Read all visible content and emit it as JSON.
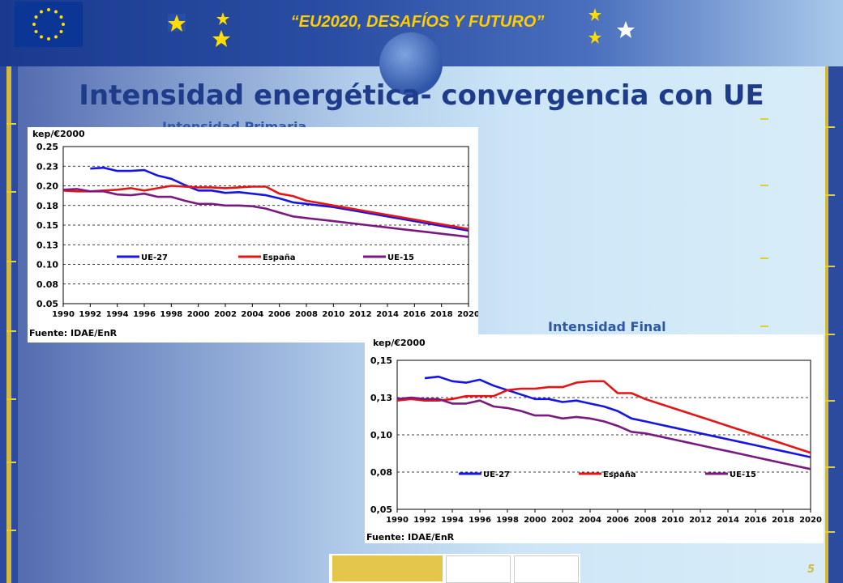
{
  "header": {
    "title": "“EU2020, DESAFÍOS Y FUTURO”"
  },
  "slide": {
    "title": "Intensidad energética- convergencia con UE",
    "page_number": "5"
  },
  "colors": {
    "ue27": "#1515e6",
    "espana": "#e61515",
    "ue15": "#7a1a80"
  },
  "chart_data": [
    {
      "type": "line",
      "title": "Intensidad Primaria",
      "ylabel": "kep/€2000",
      "source": "Fuente: IDAE/EnR",
      "ylim": [
        0.05,
        0.25
      ],
      "yticks": [
        "0.25",
        "0.23",
        "0.20",
        "0.18",
        "0.15",
        "0.13",
        "0.10",
        "0.08",
        "0.05"
      ],
      "xticks": [
        "1990",
        "1992",
        "1994",
        "1996",
        "1998",
        "2000",
        "2002",
        "2004",
        "2006",
        "2008",
        "2010",
        "2012",
        "2014",
        "2016",
        "2018",
        "2020"
      ],
      "x": [
        1990,
        1991,
        1992,
        1993,
        1994,
        1995,
        1996,
        1997,
        1998,
        1999,
        2000,
        2001,
        2002,
        2003,
        2004,
        2005,
        2006,
        2007,
        2008,
        2009,
        2010,
        2011,
        2012,
        2013,
        2014,
        2015,
        2016,
        2017,
        2018,
        2019,
        2020
      ],
      "series": [
        {
          "name": "UE-27",
          "color_key": "ue27",
          "values": [
            null,
            null,
            0.222,
            0.223,
            0.219,
            0.219,
            0.22,
            0.213,
            0.209,
            0.201,
            0.194,
            0.194,
            0.191,
            0.192,
            0.19,
            0.188,
            0.184,
            0.179,
            0.177,
            0.175,
            0.173,
            0.17,
            0.167,
            0.164,
            0.161,
            0.158,
            0.155,
            0.152,
            0.149,
            0.146,
            0.143
          ]
        },
        {
          "name": "España",
          "color_key": "espana",
          "values": [
            0.194,
            0.193,
            0.193,
            0.194,
            0.195,
            0.197,
            0.194,
            0.197,
            0.2,
            0.199,
            0.198,
            0.198,
            0.197,
            0.198,
            0.199,
            0.199,
            0.19,
            0.187,
            0.181,
            0.178,
            0.175,
            0.172,
            0.169,
            0.166,
            0.163,
            0.16,
            0.157,
            0.154,
            0.151,
            0.148,
            0.145
          ]
        },
        {
          "name": "UE-15",
          "color_key": "ue15",
          "values": [
            0.195,
            0.196,
            0.193,
            0.193,
            0.189,
            0.188,
            0.19,
            0.186,
            0.186,
            0.181,
            0.177,
            0.177,
            0.175,
            0.175,
            0.174,
            0.171,
            0.166,
            0.161,
            0.159,
            0.157,
            0.155,
            0.153,
            0.151,
            0.149,
            0.147,
            0.145,
            0.143,
            0.141,
            0.139,
            0.137,
            0.135
          ]
        }
      ],
      "legend": "bottom"
    },
    {
      "type": "line",
      "title": "Intensidad Final",
      "ylabel": "kep/€2000",
      "source": "Fuente: IDAE/EnR",
      "ylim": [
        0.05,
        0.15
      ],
      "yticks": [
        "0,15",
        "0,13",
        "0,10",
        "0,08",
        "0,05"
      ],
      "xticks": [
        "1990",
        "1992",
        "1994",
        "1996",
        "1998",
        "2000",
        "2002",
        "2004",
        "2006",
        "2008",
        "2010",
        "2012",
        "2014",
        "2016",
        "2018",
        "2020"
      ],
      "x": [
        1990,
        1991,
        1992,
        1993,
        1994,
        1995,
        1996,
        1997,
        1998,
        1999,
        2000,
        2001,
        2002,
        2003,
        2004,
        2005,
        2006,
        2007,
        2008,
        2009,
        2010,
        2011,
        2012,
        2013,
        2014,
        2015,
        2016,
        2017,
        2018,
        2019,
        2020
      ],
      "series": [
        {
          "name": "UE-27",
          "color_key": "ue27",
          "values": [
            null,
            null,
            0.138,
            0.139,
            0.136,
            0.135,
            0.137,
            0.133,
            0.13,
            0.127,
            0.124,
            0.124,
            0.122,
            0.123,
            0.121,
            0.119,
            0.116,
            0.111,
            0.109,
            0.107,
            0.105,
            0.103,
            0.101,
            0.099,
            0.097,
            0.095,
            0.093,
            0.091,
            0.089,
            0.087,
            0.085
          ]
        },
        {
          "name": "España",
          "color_key": "espana",
          "values": [
            0.123,
            0.124,
            0.123,
            0.123,
            0.124,
            0.126,
            0.126,
            0.126,
            0.13,
            0.131,
            0.131,
            0.132,
            0.132,
            0.135,
            0.136,
            0.136,
            0.128,
            0.128,
            0.124,
            0.121,
            0.118,
            0.115,
            0.112,
            0.109,
            0.106,
            0.103,
            0.1,
            0.097,
            0.094,
            0.091,
            0.088
          ]
        },
        {
          "name": "UE-15",
          "color_key": "ue15",
          "values": [
            0.124,
            0.125,
            0.124,
            0.124,
            0.121,
            0.121,
            0.123,
            0.119,
            0.118,
            0.116,
            0.113,
            0.113,
            0.111,
            0.112,
            0.111,
            0.109,
            0.106,
            0.102,
            0.101,
            0.099,
            0.097,
            0.095,
            0.093,
            0.091,
            0.089,
            0.087,
            0.085,
            0.083,
            0.081,
            0.079,
            0.077
          ]
        }
      ],
      "legend": "bottom"
    }
  ]
}
